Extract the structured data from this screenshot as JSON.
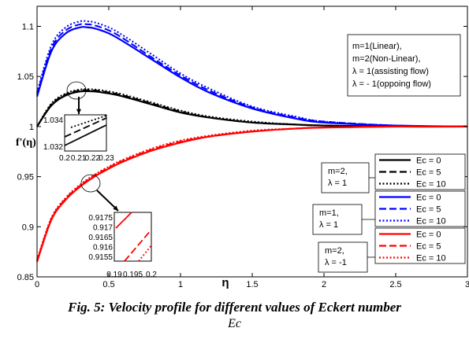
{
  "chart_data": {
    "type": "line",
    "title": "",
    "xlabel": "η",
    "ylabel": "f'(η)",
    "xlim": [
      0,
      3
    ],
    "ylim": [
      0.85,
      1.12
    ],
    "x_ticks": [
      0,
      0.5,
      1,
      1.5,
      2,
      2.5,
      3
    ],
    "x_tick_labels": [
      "0",
      "0.5",
      "1",
      "1.5",
      "2",
      "2.5",
      "3"
    ],
    "y_ticks": [
      0.85,
      0.9,
      0.95,
      1,
      1.05,
      1.1
    ],
    "y_tick_labels": [
      "0.85",
      "0.9",
      "0.95",
      "1",
      "1.05",
      "1.1"
    ],
    "grid": false,
    "annotation_text": [
      "m=1(Linear),",
      "m=2(Non-Linear),",
      "λ = 1(assisting flow)",
      "λ = - 1(oppoing flow)"
    ],
    "group_labels": [
      {
        "lines": [
          "m=2,",
          "λ = 1"
        ],
        "color": "#000000"
      },
      {
        "lines": [
          "m=1,",
          "λ = 1"
        ],
        "color": "#0000ff"
      },
      {
        "lines": [
          "m=2,",
          "λ = -1"
        ],
        "color": "#ff0000"
      }
    ],
    "legend_position": "bottom-right",
    "legend_entries": [
      "Ec = 0",
      "Ec = 5",
      "Ec = 10"
    ],
    "series": [
      {
        "name": "Ec = 0",
        "color": "#000000",
        "style": "solid",
        "x": [
          0,
          0.1,
          0.2,
          0.3,
          0.4,
          0.5,
          0.6,
          0.8,
          1.0,
          1.2,
          1.5,
          1.8,
          2.0,
          2.5,
          3.0
        ],
        "y": [
          1.0,
          1.021,
          1.031,
          1.035,
          1.035,
          1.033,
          1.03,
          1.022,
          1.014,
          1.009,
          1.004,
          1.002,
          1.001,
          1.0,
          1.0
        ]
      },
      {
        "name": "Ec = 5",
        "color": "#000000",
        "style": "dash",
        "x": [
          0,
          0.1,
          0.2,
          0.3,
          0.4,
          0.5,
          0.6,
          0.8,
          1.0,
          1.2,
          1.5,
          1.8,
          2.0,
          2.5,
          3.0
        ],
        "y": [
          1.0,
          1.022,
          1.032,
          1.036,
          1.036,
          1.034,
          1.031,
          1.023,
          1.015,
          1.009,
          1.004,
          1.002,
          1.001,
          1.0,
          1.0
        ]
      },
      {
        "name": "Ec = 10",
        "color": "#000000",
        "style": "dot",
        "x": [
          0,
          0.1,
          0.2,
          0.3,
          0.4,
          0.5,
          0.6,
          0.8,
          1.0,
          1.2,
          1.5,
          1.8,
          2.0,
          2.5,
          3.0
        ],
        "y": [
          1.0,
          1.023,
          1.033,
          1.037,
          1.037,
          1.035,
          1.032,
          1.024,
          1.016,
          1.01,
          1.005,
          1.002,
          1.001,
          1.0,
          1.0
        ]
      },
      {
        "name": "Ec = 0",
        "color": "#0000ff",
        "style": "solid",
        "x": [
          0,
          0.1,
          0.2,
          0.3,
          0.35,
          0.4,
          0.5,
          0.6,
          0.8,
          1.0,
          1.2,
          1.5,
          1.8,
          2.0,
          2.5,
          3.0
        ],
        "y": [
          1.03,
          1.075,
          1.093,
          1.099,
          1.099,
          1.098,
          1.093,
          1.085,
          1.067,
          1.049,
          1.034,
          1.018,
          1.008,
          1.004,
          1.001,
          1.0
        ]
      },
      {
        "name": "Ec = 5",
        "color": "#0000ff",
        "style": "dash",
        "x": [
          0,
          0.1,
          0.2,
          0.3,
          0.35,
          0.4,
          0.5,
          0.6,
          0.8,
          1.0,
          1.2,
          1.5,
          1.8,
          2.0,
          2.5,
          3.0
        ],
        "y": [
          1.032,
          1.078,
          1.096,
          1.102,
          1.102,
          1.101,
          1.096,
          1.088,
          1.069,
          1.051,
          1.036,
          1.019,
          1.009,
          1.005,
          1.001,
          1.0
        ]
      },
      {
        "name": "Ec = 10",
        "color": "#0000ff",
        "style": "dot",
        "x": [
          0,
          0.1,
          0.2,
          0.3,
          0.35,
          0.4,
          0.5,
          0.6,
          0.8,
          1.0,
          1.2,
          1.5,
          1.8,
          2.0,
          2.5,
          3.0
        ],
        "y": [
          1.034,
          1.081,
          1.099,
          1.105,
          1.105,
          1.104,
          1.099,
          1.091,
          1.072,
          1.053,
          1.038,
          1.02,
          1.01,
          1.005,
          1.001,
          1.0
        ]
      },
      {
        "name": "Ec = 0",
        "color": "#ff0000",
        "style": "solid",
        "x": [
          0,
          0.1,
          0.2,
          0.3,
          0.4,
          0.5,
          0.6,
          0.8,
          1.0,
          1.2,
          1.5,
          1.8,
          2.0,
          2.5,
          3.0
        ],
        "y": [
          0.865,
          0.907,
          0.927,
          0.94,
          0.95,
          0.958,
          0.965,
          0.976,
          0.984,
          0.99,
          0.995,
          0.998,
          0.999,
          1.0,
          1.0
        ]
      },
      {
        "name": "Ec = 5",
        "color": "#ff0000",
        "style": "dash",
        "x": [
          0,
          0.1,
          0.2,
          0.3,
          0.4,
          0.5,
          0.6,
          0.8,
          1.0,
          1.2,
          1.5,
          1.8,
          2.0,
          2.5,
          3.0
        ],
        "y": [
          0.866,
          0.908,
          0.928,
          0.941,
          0.951,
          0.959,
          0.966,
          0.977,
          0.985,
          0.99,
          0.995,
          0.998,
          0.999,
          1.0,
          1.0
        ]
      },
      {
        "name": "Ec = 10",
        "color": "#ff0000",
        "style": "dot",
        "x": [
          0,
          0.1,
          0.2,
          0.3,
          0.4,
          0.5,
          0.6,
          0.8,
          1.0,
          1.2,
          1.5,
          1.8,
          2.0,
          2.5,
          3.0
        ],
        "y": [
          0.867,
          0.909,
          0.929,
          0.942,
          0.952,
          0.96,
          0.967,
          0.978,
          0.986,
          0.991,
          0.996,
          0.998,
          0.999,
          1.0,
          1.0
        ]
      }
    ],
    "insets": [
      {
        "x_tick_labels": [
          "0.2",
          "0.21",
          "0.22",
          "0.23"
        ],
        "y_tick_labels": [
          "1.034",
          "1.032"
        ],
        "xlim": [
          0.2,
          0.23
        ],
        "ylim": [
          1.031,
          1.035
        ]
      },
      {
        "x_tick_labels": [
          "0.19",
          "0.195",
          "0.2"
        ],
        "y_tick_labels": [
          "0.9175",
          "0.917",
          "0.9165",
          "0.916",
          "0.9155"
        ],
        "xlim": [
          0.19,
          0.2
        ],
        "ylim": [
          0.9152,
          0.9178
        ]
      }
    ]
  },
  "caption": {
    "line1": "Fig. 5: Velocity profile for different values of Eckert number",
    "line2": "Ec"
  }
}
